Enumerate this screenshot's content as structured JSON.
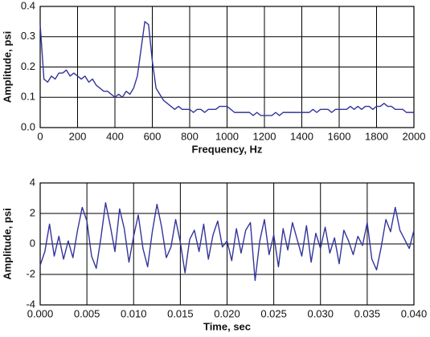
{
  "chart_data": [
    {
      "type": "line",
      "x_label": "Frequency, Hz",
      "y_label": "Amplitude, psi",
      "xlim": [
        0,
        2000
      ],
      "xticks": [
        0,
        200,
        400,
        600,
        800,
        1000,
        1200,
        1400,
        1600,
        1800,
        2000
      ],
      "ylim": [
        0,
        0.4
      ],
      "yticks": [
        {
          "value": 0,
          "label": "0.0"
        },
        0.1,
        0.2,
        0.3,
        0.4
      ],
      "grid": true,
      "x": [
        0,
        20,
        40,
        60,
        80,
        100,
        120,
        140,
        160,
        180,
        200,
        220,
        240,
        260,
        280,
        300,
        320,
        340,
        360,
        380,
        400,
        420,
        440,
        460,
        480,
        500,
        520,
        540,
        560,
        580,
        600,
        620,
        640,
        660,
        680,
        700,
        720,
        740,
        760,
        780,
        800,
        820,
        840,
        860,
        880,
        900,
        920,
        940,
        960,
        980,
        1000,
        1020,
        1040,
        1060,
        1080,
        1100,
        1120,
        1140,
        1160,
        1180,
        1200,
        1220,
        1240,
        1260,
        1280,
        1300,
        1320,
        1340,
        1360,
        1380,
        1400,
        1420,
        1440,
        1460,
        1480,
        1500,
        1520,
        1540,
        1560,
        1580,
        1600,
        1620,
        1640,
        1660,
        1680,
        1700,
        1720,
        1740,
        1760,
        1780,
        1800,
        1820,
        1840,
        1860,
        1880,
        1900,
        1920,
        1940,
        1960,
        1980,
        2000
      ],
      "series": [
        {
          "color": "#34349c",
          "values": [
            0.34,
            0.16,
            0.15,
            0.17,
            0.16,
            0.18,
            0.18,
            0.19,
            0.17,
            0.18,
            0.17,
            0.16,
            0.17,
            0.15,
            0.16,
            0.14,
            0.13,
            0.12,
            0.12,
            0.11,
            0.1,
            0.11,
            0.1,
            0.12,
            0.11,
            0.13,
            0.17,
            0.26,
            0.35,
            0.34,
            0.22,
            0.13,
            0.11,
            0.09,
            0.08,
            0.07,
            0.06,
            0.07,
            0.06,
            0.06,
            0.06,
            0.05,
            0.06,
            0.06,
            0.05,
            0.06,
            0.06,
            0.06,
            0.07,
            0.07,
            0.07,
            0.06,
            0.05,
            0.05,
            0.05,
            0.05,
            0.05,
            0.04,
            0.05,
            0.04,
            0.04,
            0.04,
            0.04,
            0.05,
            0.04,
            0.05,
            0.05,
            0.05,
            0.05,
            0.05,
            0.05,
            0.05,
            0.05,
            0.06,
            0.05,
            0.06,
            0.06,
            0.06,
            0.05,
            0.06,
            0.06,
            0.06,
            0.06,
            0.07,
            0.06,
            0.07,
            0.06,
            0.07,
            0.07,
            0.06,
            0.07,
            0.07,
            0.08,
            0.07,
            0.07,
            0.06,
            0.06,
            0.06,
            0.05,
            0.05,
            0.05
          ]
        }
      ]
    },
    {
      "type": "line",
      "x_label": "Time, sec",
      "y_label": "Amplitude, psi",
      "xlim": [
        0,
        0.04
      ],
      "xticks": [
        {
          "value": 0,
          "label": "0.000"
        },
        {
          "value": 0.005,
          "label": "0.005"
        },
        {
          "value": 0.01,
          "label": "0.010"
        },
        {
          "value": 0.015,
          "label": "0.015"
        },
        {
          "value": 0.02,
          "label": "0.020"
        },
        {
          "value": 0.025,
          "label": "0.025"
        },
        {
          "value": 0.03,
          "label": "0.030"
        },
        {
          "value": 0.035,
          "label": "0.035"
        },
        {
          "value": 0.04,
          "label": "0.040"
        }
      ],
      "ylim": [
        -4,
        4
      ],
      "yticks": [
        -4,
        -2,
        0,
        2,
        4
      ],
      "grid": true,
      "x": [
        0,
        0.0005,
        0.001,
        0.0015,
        0.002,
        0.0025,
        0.003,
        0.0035,
        0.004,
        0.0045,
        0.005,
        0.0055,
        0.006,
        0.0065,
        0.007,
        0.0075,
        0.008,
        0.0085,
        0.009,
        0.0095,
        0.01,
        0.0105,
        0.011,
        0.0115,
        0.012,
        0.0125,
        0.013,
        0.0135,
        0.014,
        0.0145,
        0.015,
        0.0155,
        0.016,
        0.0165,
        0.017,
        0.0175,
        0.018,
        0.0185,
        0.019,
        0.0195,
        0.02,
        0.0205,
        0.021,
        0.0215,
        0.022,
        0.0225,
        0.023,
        0.0235,
        0.024,
        0.0245,
        0.025,
        0.0255,
        0.026,
        0.0265,
        0.027,
        0.0275,
        0.028,
        0.0285,
        0.029,
        0.0295,
        0.03,
        0.0305,
        0.031,
        0.0315,
        0.032,
        0.0325,
        0.033,
        0.0335,
        0.034,
        0.0345,
        0.035,
        0.0355,
        0.036,
        0.0365,
        0.037,
        0.0375,
        0.038,
        0.0385,
        0.039,
        0.0395,
        0.04
      ],
      "series": [
        {
          "color": "#34349c",
          "values": [
            -1.4,
            -0.5,
            1.3,
            -0.8,
            0.5,
            -1.0,
            0.2,
            -0.9,
            0.9,
            2.4,
            1.5,
            -0.8,
            -1.6,
            0.4,
            2.7,
            1.2,
            -0.5,
            2.3,
            1.0,
            -1.2,
            0.5,
            1.9,
            -0.3,
            -1.5,
            0.8,
            2.6,
            1.1,
            -0.9,
            -0.2,
            1.6,
            0.1,
            -1.9,
            0.3,
            0.9,
            -0.5,
            1.3,
            -1.0,
            0.6,
            1.5,
            -0.2,
            0.2,
            -1.1,
            1.0,
            -0.6,
            0.9,
            1.4,
            -2.4,
            0.2,
            1.6,
            -0.7,
            0.6,
            -1.5,
            1.0,
            -0.4,
            1.4,
            0.3,
            -0.8,
            1.2,
            -1.2,
            0.7,
            -0.3,
            1.1,
            -0.6,
            0.4,
            -1.3,
            0.9,
            0.2,
            -0.7,
            0.5,
            -0.1,
            1.4,
            -1.0,
            -1.7,
            -0.2,
            1.6,
            0.8,
            2.4,
            0.9,
            0.3,
            -0.3,
            0.9
          ]
        }
      ]
    }
  ]
}
